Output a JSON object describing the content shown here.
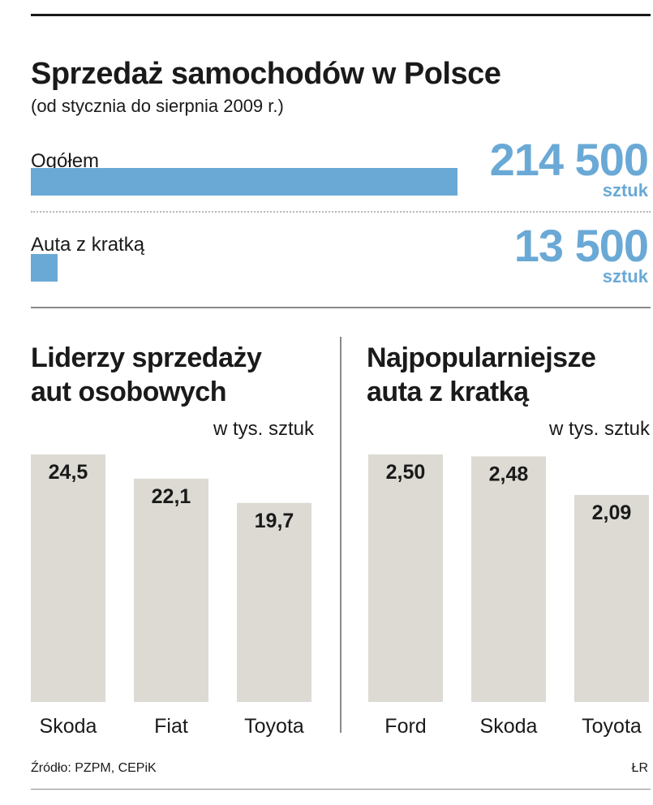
{
  "header": {
    "title": "Sprzedaż samochodów w Polsce",
    "subtitle": "(od stycznia do sierpnia 2009 r.)"
  },
  "totals": [
    {
      "label": "Ogółem",
      "value_text": "214 500",
      "unit": "sztuk",
      "value": 214500
    },
    {
      "label": "Auta z kratką",
      "value_text": "13 500",
      "unit": "sztuk",
      "value": 13500
    }
  ],
  "colors": {
    "accent_blue": "#6aa9d6",
    "bar_gray": "#dcdad3",
    "text_dark": "#1a1a1a"
  },
  "chart_data": [
    {
      "type": "bar",
      "title": "Liderzy sprzedaży aut osobowych",
      "title_lines": [
        "Liderzy sprzedaży",
        "aut osobowych"
      ],
      "ylabel": "w tys. sztuk",
      "categories": [
        "Skoda",
        "Fiat",
        "Toyota"
      ],
      "values": [
        24.5,
        22.1,
        19.7
      ],
      "value_labels": [
        "24,5",
        "22,1",
        "19,7"
      ],
      "ylim": [
        0,
        24.5
      ]
    },
    {
      "type": "bar",
      "title": "Najpopularniejsze auta z kratką",
      "title_lines": [
        "Najpopularniejsze",
        "auta z kratką"
      ],
      "ylabel": "w tys. sztuk",
      "categories": [
        "Ford",
        "Skoda",
        "Toyota"
      ],
      "values": [
        2.5,
        2.48,
        2.09
      ],
      "value_labels": [
        "2,50",
        "2,48",
        "2,09"
      ],
      "ylim": [
        0,
        2.5
      ]
    }
  ],
  "footer": {
    "source": "Źródło: PZPM, CEPiK",
    "author": "ŁR"
  }
}
